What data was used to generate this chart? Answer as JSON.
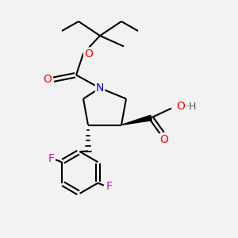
{
  "background_color": "#f2f2f2",
  "bond_color": "#000000",
  "atom_colors": {
    "O": "#ff0000",
    "N": "#0000cc",
    "F": "#dd00cc",
    "C": "#000000",
    "H": "#555555"
  },
  "figsize": [
    3.0,
    3.0
  ],
  "dpi": 100
}
